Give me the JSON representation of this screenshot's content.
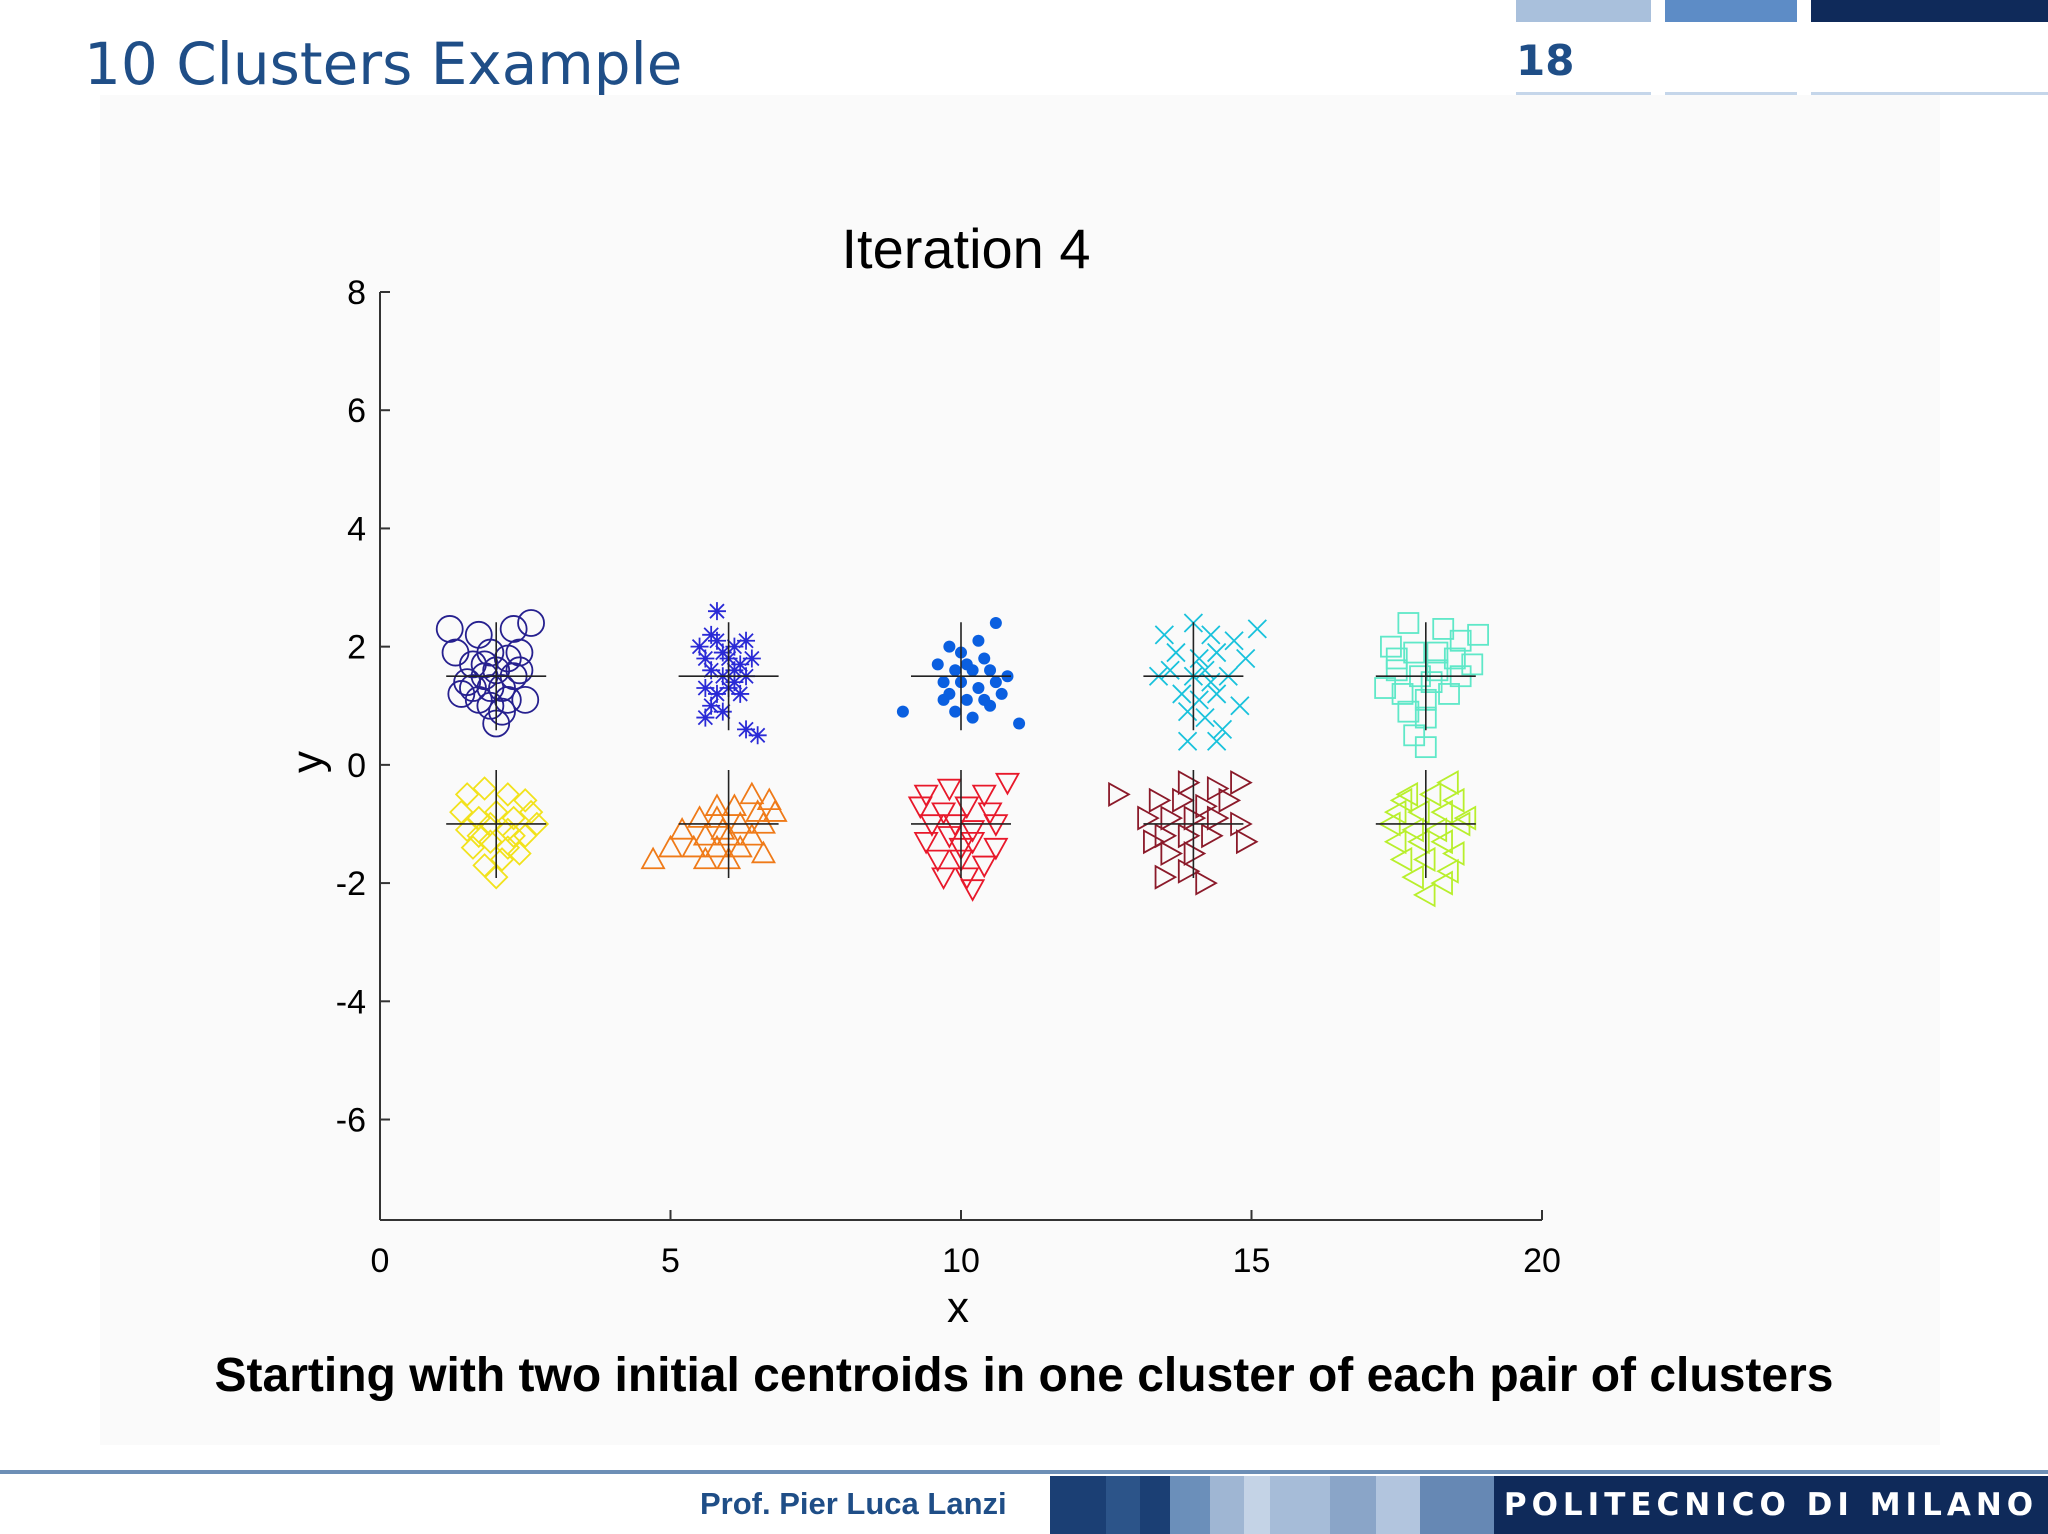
{
  "slide": {
    "title": "10 Clusters Example",
    "page_number": "18",
    "caption": "Starting with two initial centroids in one cluster of each pair of clusters",
    "author": "Prof. Pier Luca Lanzi",
    "institution": "POLITECNICO DI MILANO",
    "colors": {
      "title_blue": "#1f4e87",
      "footer_navy": "#0f2a5a"
    }
  },
  "chart_data": {
    "type": "scatter",
    "title": "Iteration 4",
    "xlabel": "x",
    "ylabel": "y",
    "xlim": [
      0,
      20
    ],
    "ylim": [
      -7.5,
      8
    ],
    "xticks": [
      0,
      5,
      10,
      15,
      20
    ],
    "yticks": [
      8,
      6,
      4,
      2,
      0,
      -2,
      -4,
      -6
    ],
    "grid": false,
    "legend": "none",
    "series": [
      {
        "marker": "circle",
        "color": "#26208f",
        "centroid": [
          2.0,
          1.5
        ],
        "points": [
          [
            1.2,
            2.3
          ],
          [
            1.7,
            2.2
          ],
          [
            2.3,
            2.3
          ],
          [
            2.6,
            2.4
          ],
          [
            1.3,
            1.9
          ],
          [
            1.6,
            1.7
          ],
          [
            1.9,
            1.9
          ],
          [
            2.2,
            1.8
          ],
          [
            2.4,
            1.9
          ],
          [
            1.5,
            1.4
          ],
          [
            1.8,
            1.5
          ],
          [
            2.0,
            1.6
          ],
          [
            2.1,
            1.3
          ],
          [
            2.3,
            1.5
          ],
          [
            2.5,
            1.1
          ],
          [
            1.7,
            1.1
          ],
          [
            1.9,
            1.0
          ],
          [
            2.1,
            0.9
          ],
          [
            1.6,
            1.3
          ],
          [
            2.2,
            1.1
          ],
          [
            1.4,
            1.2
          ],
          [
            2.0,
            0.7
          ],
          [
            1.8,
            1.7
          ],
          [
            2.4,
            1.6
          ],
          [
            1.9,
            1.3
          ]
        ]
      },
      {
        "marker": "star",
        "color": "#2a2ad6",
        "centroid": [
          6.0,
          1.5
        ],
        "points": [
          [
            5.8,
            2.6
          ],
          [
            5.5,
            2.0
          ],
          [
            5.8,
            2.1
          ],
          [
            6.1,
            2.0
          ],
          [
            6.3,
            2.1
          ],
          [
            5.6,
            1.8
          ],
          [
            6.0,
            1.8
          ],
          [
            6.2,
            1.7
          ],
          [
            5.7,
            1.6
          ],
          [
            5.9,
            1.5
          ],
          [
            6.1,
            1.6
          ],
          [
            6.3,
            1.5
          ],
          [
            5.6,
            1.3
          ],
          [
            5.8,
            1.2
          ],
          [
            6.0,
            1.3
          ],
          [
            5.7,
            1.0
          ],
          [
            5.9,
            0.9
          ],
          [
            5.6,
            0.8
          ],
          [
            6.2,
            1.2
          ],
          [
            6.3,
            0.6
          ],
          [
            6.5,
            0.5
          ],
          [
            5.9,
            1.9
          ],
          [
            6.4,
            1.8
          ],
          [
            5.7,
            2.2
          ],
          [
            6.1,
            1.4
          ]
        ]
      },
      {
        "marker": "dot",
        "color": "#0a5fe0",
        "centroid": [
          10.0,
          1.5
        ],
        "points": [
          [
            10.6,
            2.4
          ],
          [
            10.3,
            2.1
          ],
          [
            9.8,
            2.0
          ],
          [
            10.0,
            1.9
          ],
          [
            10.4,
            1.8
          ],
          [
            9.6,
            1.7
          ],
          [
            9.9,
            1.6
          ],
          [
            10.2,
            1.6
          ],
          [
            10.5,
            1.6
          ],
          [
            9.7,
            1.4
          ],
          [
            10.0,
            1.4
          ],
          [
            10.3,
            1.3
          ],
          [
            10.6,
            1.4
          ],
          [
            9.8,
            1.2
          ],
          [
            10.1,
            1.1
          ],
          [
            10.4,
            1.1
          ],
          [
            10.7,
            1.2
          ],
          [
            9.9,
            0.9
          ],
          [
            10.2,
            0.8
          ],
          [
            9.0,
            0.9
          ],
          [
            11.0,
            0.7
          ],
          [
            10.5,
            1.0
          ],
          [
            9.7,
            1.1
          ],
          [
            10.1,
            1.7
          ],
          [
            10.8,
            1.5
          ]
        ]
      },
      {
        "marker": "x",
        "color": "#19c2dc",
        "centroid": [
          14.0,
          1.5
        ],
        "points": [
          [
            13.5,
            2.2
          ],
          [
            14.0,
            2.4
          ],
          [
            14.3,
            2.2
          ],
          [
            14.7,
            2.1
          ],
          [
            15.1,
            2.3
          ],
          [
            13.7,
            1.9
          ],
          [
            14.1,
            1.8
          ],
          [
            14.4,
            1.9
          ],
          [
            13.6,
            1.6
          ],
          [
            14.0,
            1.5
          ],
          [
            14.3,
            1.4
          ],
          [
            14.6,
            1.5
          ],
          [
            13.8,
            1.2
          ],
          [
            14.1,
            1.1
          ],
          [
            14.4,
            1.2
          ],
          [
            13.9,
            0.9
          ],
          [
            14.2,
            0.8
          ],
          [
            14.5,
            0.6
          ],
          [
            13.9,
            0.4
          ],
          [
            14.4,
            0.4
          ],
          [
            14.8,
            1.0
          ],
          [
            13.4,
            1.5
          ],
          [
            14.2,
            1.6
          ],
          [
            14.9,
            1.8
          ]
        ]
      },
      {
        "marker": "square",
        "color": "#5fe8c8",
        "centroid": [
          18.0,
          1.5
        ],
        "points": [
          [
            17.7,
            2.4
          ],
          [
            18.3,
            2.3
          ],
          [
            18.6,
            2.1
          ],
          [
            18.9,
            2.2
          ],
          [
            17.4,
            2.0
          ],
          [
            17.8,
            1.9
          ],
          [
            18.2,
            1.9
          ],
          [
            18.5,
            1.8
          ],
          [
            17.5,
            1.6
          ],
          [
            17.9,
            1.5
          ],
          [
            18.2,
            1.6
          ],
          [
            18.6,
            1.5
          ],
          [
            17.3,
            1.3
          ],
          [
            17.6,
            1.2
          ],
          [
            18.0,
            1.1
          ],
          [
            18.4,
            1.2
          ],
          [
            17.7,
            0.9
          ],
          [
            18.0,
            0.8
          ],
          [
            17.8,
            0.5
          ],
          [
            18.0,
            0.3
          ],
          [
            18.8,
            1.7
          ],
          [
            17.5,
            1.8
          ],
          [
            18.1,
            1.4
          ]
        ]
      },
      {
        "marker": "diamond",
        "color": "#f2e21c",
        "centroid": [
          2.0,
          -1.0
        ],
        "points": [
          [
            1.5,
            -0.5
          ],
          [
            1.8,
            -0.4
          ],
          [
            2.2,
            -0.5
          ],
          [
            2.5,
            -0.6
          ],
          [
            1.4,
            -0.8
          ],
          [
            1.7,
            -0.9
          ],
          [
            2.0,
            -0.8
          ],
          [
            2.3,
            -0.9
          ],
          [
            2.6,
            -0.8
          ],
          [
            1.5,
            -1.1
          ],
          [
            1.9,
            -1.0
          ],
          [
            2.2,
            -1.1
          ],
          [
            2.5,
            -1.2
          ],
          [
            1.6,
            -1.4
          ],
          [
            1.9,
            -1.3
          ],
          [
            2.2,
            -1.4
          ],
          [
            2.4,
            -1.5
          ],
          [
            1.8,
            -1.7
          ],
          [
            2.1,
            -1.6
          ],
          [
            2.0,
            -1.9
          ],
          [
            2.3,
            -1.2
          ],
          [
            1.7,
            -1.2
          ],
          [
            2.7,
            -1.0
          ]
        ]
      },
      {
        "marker": "triangle-up",
        "color": "#ef7a18",
        "centroid": [
          6.0,
          -1.0
        ],
        "points": [
          [
            6.4,
            -0.5
          ],
          [
            6.7,
            -0.6
          ],
          [
            5.8,
            -0.7
          ],
          [
            6.1,
            -0.7
          ],
          [
            6.5,
            -0.8
          ],
          [
            5.5,
            -0.9
          ],
          [
            5.8,
            -0.9
          ],
          [
            6.2,
            -1.0
          ],
          [
            6.6,
            -1.0
          ],
          [
            5.2,
            -1.1
          ],
          [
            5.6,
            -1.2
          ],
          [
            6.0,
            -1.2
          ],
          [
            6.4,
            -1.2
          ],
          [
            5.4,
            -1.4
          ],
          [
            5.8,
            -1.4
          ],
          [
            6.2,
            -1.4
          ],
          [
            6.6,
            -1.5
          ],
          [
            5.6,
            -1.6
          ],
          [
            6.0,
            -1.6
          ],
          [
            4.7,
            -1.6
          ],
          [
            5.0,
            -1.4
          ],
          [
            6.8,
            -0.8
          ],
          [
            5.9,
            -1.1
          ]
        ]
      },
      {
        "marker": "triangle-down",
        "color": "#e8182a",
        "centroid": [
          10.0,
          -1.0
        ],
        "points": [
          [
            9.4,
            -0.5
          ],
          [
            9.8,
            -0.4
          ],
          [
            10.4,
            -0.5
          ],
          [
            10.8,
            -0.3
          ],
          [
            9.3,
            -0.7
          ],
          [
            9.7,
            -0.8
          ],
          [
            10.1,
            -0.7
          ],
          [
            10.5,
            -0.8
          ],
          [
            9.5,
            -1.0
          ],
          [
            9.9,
            -1.0
          ],
          [
            10.2,
            -1.1
          ],
          [
            10.6,
            -1.0
          ],
          [
            9.4,
            -1.3
          ],
          [
            9.8,
            -1.2
          ],
          [
            10.2,
            -1.3
          ],
          [
            10.6,
            -1.4
          ],
          [
            9.6,
            -1.6
          ],
          [
            10.0,
            -1.6
          ],
          [
            10.4,
            -1.7
          ],
          [
            9.7,
            -1.9
          ],
          [
            10.1,
            -1.9
          ],
          [
            10.2,
            -2.1
          ],
          [
            10.0,
            -1.4
          ]
        ]
      },
      {
        "marker": "triangle-right",
        "color": "#8b1a2a",
        "centroid": [
          14.0,
          -1.0
        ],
        "points": [
          [
            12.7,
            -0.5
          ],
          [
            13.9,
            -0.3
          ],
          [
            14.4,
            -0.4
          ],
          [
            14.8,
            -0.3
          ],
          [
            13.4,
            -0.6
          ],
          [
            13.8,
            -0.6
          ],
          [
            14.2,
            -0.7
          ],
          [
            14.6,
            -0.6
          ],
          [
            13.2,
            -0.9
          ],
          [
            13.6,
            -0.9
          ],
          [
            14.0,
            -0.9
          ],
          [
            14.4,
            -0.9
          ],
          [
            14.8,
            -1.0
          ],
          [
            13.5,
            -1.2
          ],
          [
            13.9,
            -1.2
          ],
          [
            14.3,
            -1.2
          ],
          [
            14.9,
            -1.3
          ],
          [
            13.6,
            -1.5
          ],
          [
            14.0,
            -1.5
          ],
          [
            13.5,
            -1.9
          ],
          [
            13.9,
            -1.8
          ],
          [
            14.2,
            -2.0
          ],
          [
            13.3,
            -1.3
          ]
        ]
      },
      {
        "marker": "triangle-left",
        "color": "#b8ef2c",
        "centroid": [
          18.0,
          -1.0
        ],
        "points": [
          [
            18.4,
            -0.3
          ],
          [
            17.7,
            -0.5
          ],
          [
            18.1,
            -0.5
          ],
          [
            18.5,
            -0.6
          ],
          [
            17.5,
            -0.8
          ],
          [
            17.9,
            -0.8
          ],
          [
            18.3,
            -0.8
          ],
          [
            18.7,
            -0.9
          ],
          [
            17.4,
            -1.0
          ],
          [
            17.8,
            -1.1
          ],
          [
            18.2,
            -1.1
          ],
          [
            18.6,
            -1.0
          ],
          [
            17.5,
            -1.3
          ],
          [
            17.9,
            -1.3
          ],
          [
            18.3,
            -1.3
          ],
          [
            18.5,
            -1.5
          ],
          [
            17.6,
            -1.6
          ],
          [
            18.0,
            -1.6
          ],
          [
            18.4,
            -1.8
          ],
          [
            17.8,
            -1.9
          ],
          [
            18.3,
            -2.0
          ],
          [
            18.0,
            -2.2
          ],
          [
            17.6,
            -0.6
          ]
        ]
      }
    ]
  }
}
